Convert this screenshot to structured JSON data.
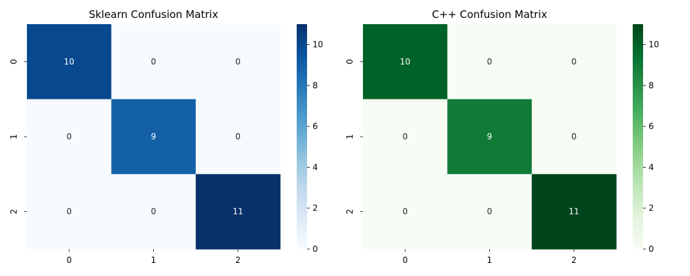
{
  "chart_data": [
    {
      "type": "heatmap",
      "title": "Sklearn Confusion Matrix",
      "x_categories": [
        "0",
        "1",
        "2"
      ],
      "y_categories": [
        "0",
        "1",
        "2"
      ],
      "values": [
        [
          10,
          0,
          0
        ],
        [
          0,
          9,
          0
        ],
        [
          0,
          0,
          11
        ]
      ],
      "colormap": "Blues",
      "color_low": "#f7fbff",
      "color_high": "#08306b",
      "vmin": 0,
      "vmax": 11,
      "colorbar_ticks": [
        "0",
        "2",
        "4",
        "6",
        "8",
        "10"
      ],
      "xlabel": "",
      "ylabel": ""
    },
    {
      "type": "heatmap",
      "title": "C++ Confusion Matrix",
      "x_categories": [
        "0",
        "1",
        "2"
      ],
      "y_categories": [
        "0",
        "1",
        "2"
      ],
      "values": [
        [
          10,
          0,
          0
        ],
        [
          0,
          9,
          0
        ],
        [
          0,
          0,
          11
        ]
      ],
      "colormap": "Greens",
      "color_low": "#f7fcf5",
      "color_high": "#00441b",
      "vmin": 0,
      "vmax": 11,
      "colorbar_ticks": [
        "0",
        "2",
        "4",
        "6",
        "8",
        "10"
      ],
      "xlabel": "",
      "ylabel": ""
    }
  ]
}
